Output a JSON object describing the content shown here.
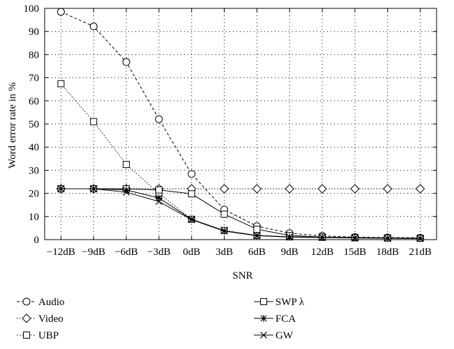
{
  "chart_data": {
    "type": "line",
    "title": "",
    "xlabel": "SNR",
    "ylabel": "Word error rate in %",
    "categories": [
      "−12dB",
      "−9dB",
      "−6dB",
      "−3dB",
      "0dB",
      "3dB",
      "6dB",
      "9dB",
      "12dB",
      "15dB",
      "18dB",
      "21dB"
    ],
    "ylim": [
      0,
      100
    ],
    "yticks": [
      "0",
      "10",
      "20",
      "30",
      "40",
      "50",
      "60",
      "70",
      "80",
      "90",
      "100"
    ],
    "grid": true,
    "legend_position": "bottom",
    "series": [
      {
        "name": "Audio",
        "marker": "circle",
        "line": "dashed",
        "values": [
          98.5,
          92.2,
          76.8,
          52.1,
          28.4,
          13.0,
          5.8,
          2.8,
          1.6,
          1.1,
          0.9,
          0.8
        ]
      },
      {
        "name": "Video",
        "marker": "diamond",
        "line": "dotted",
        "values": [
          22.0,
          22.0,
          22.0,
          22.0,
          22.0,
          22.0,
          22.0,
          22.0,
          22.0,
          22.0,
          22.0,
          22.0
        ]
      },
      {
        "name": "UBP",
        "marker": "square",
        "line": "dotted",
        "values": [
          67.4,
          51.0,
          32.5,
          20.0,
          8.8,
          4.0,
          1.8,
          1.2,
          1.0,
          0.8,
          0.7,
          0.6
        ]
      },
      {
        "name": "SWP λ",
        "marker": "square",
        "line": "solid",
        "values": [
          22.0,
          22.0,
          22.0,
          21.5,
          19.8,
          11.0,
          4.5,
          1.8,
          1.1,
          0.9,
          0.7,
          0.6
        ]
      },
      {
        "name": "FCA",
        "marker": "asterisk",
        "line": "solid",
        "values": [
          22.0,
          22.0,
          21.5,
          18.0,
          8.8,
          3.8,
          1.8,
          1.2,
          1.0,
          0.8,
          0.6,
          0.5
        ]
      },
      {
        "name": "GW",
        "marker": "x",
        "line": "solid",
        "values": [
          22.0,
          22.0,
          20.5,
          16.5,
          8.6,
          3.7,
          1.7,
          1.1,
          0.9,
          0.7,
          0.6,
          0.5
        ]
      }
    ]
  }
}
